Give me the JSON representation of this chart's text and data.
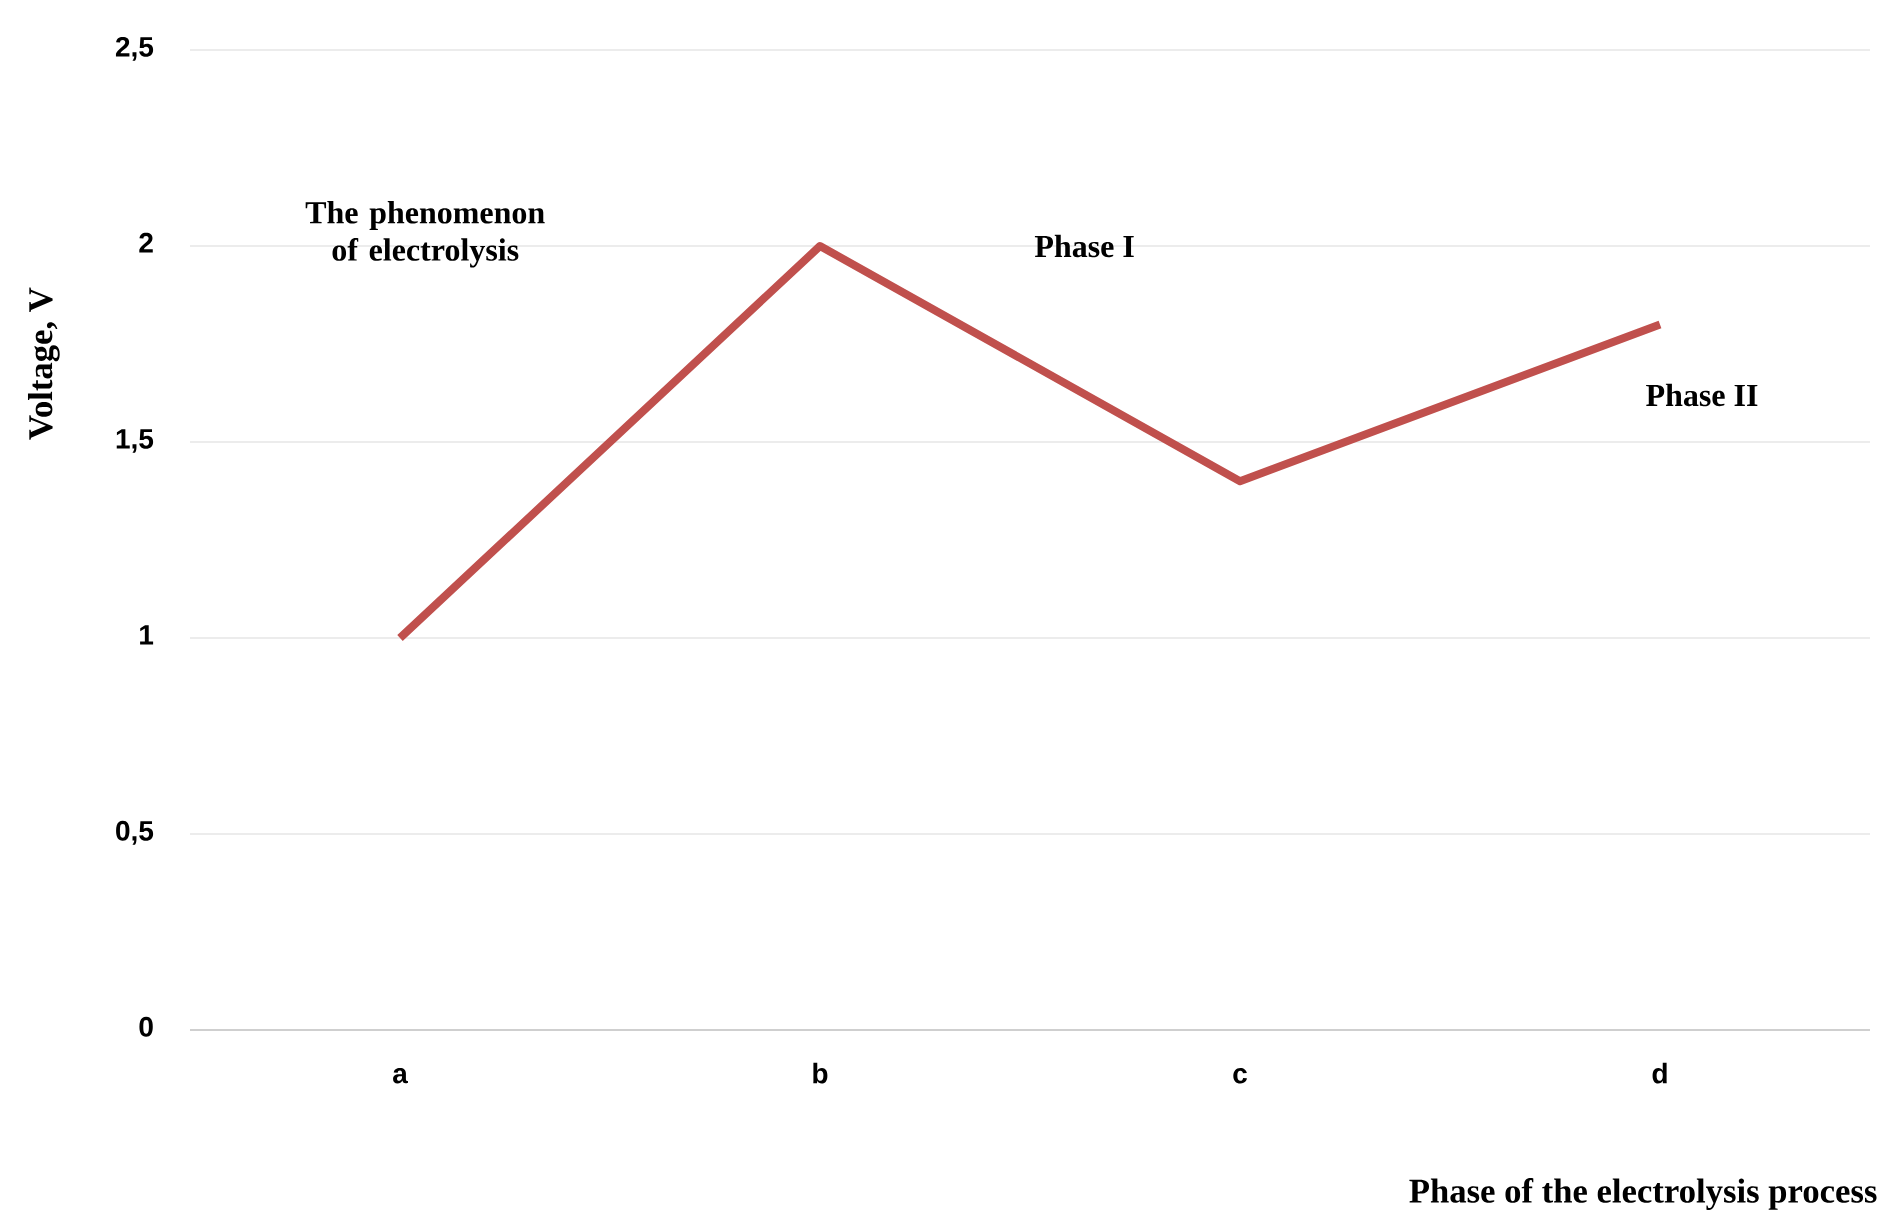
{
  "chart_data": {
    "type": "line",
    "xlabel": "Phase of the electrolysis process",
    "ylabel": "Voltage,  V",
    "categories": [
      "a",
      "b",
      "c",
      "d"
    ],
    "series": [
      {
        "color": "#c0504d",
        "values": [
          1,
          2,
          1.4,
          1.8
        ]
      }
    ],
    "ylim": [
      0,
      2.5
    ],
    "yticks": [
      0,
      {
        "value": 0.5,
        "label": "0,5"
      },
      1,
      {
        "value": 1.5,
        "label": "1,5"
      },
      2,
      {
        "value": 2.5,
        "label": "2,5"
      }
    ],
    "grid": "y",
    "marker": "none",
    "line_style": "solid",
    "annotations": [
      "The phenomenon of electrolysis",
      "Phase I",
      "Phase II"
    ]
  }
}
